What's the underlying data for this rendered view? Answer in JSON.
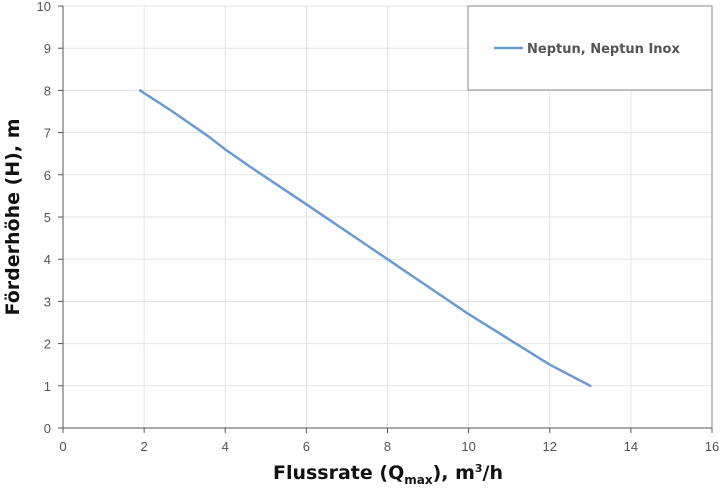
{
  "chart_data": {
    "type": "line",
    "title": "",
    "xlabel_parts": {
      "pre": "Flussrate (Q",
      "sub": "max",
      "mid": "), m",
      "sup": "3",
      "post": "/h"
    },
    "ylabel": "Förderhöhe (H), m",
    "xlim": [
      0,
      16
    ],
    "ylim": [
      0,
      10
    ],
    "xticks": [
      "0",
      "2",
      "4",
      "6",
      "8",
      "10",
      "12",
      "14",
      "16"
    ],
    "yticks": [
      "0",
      "1",
      "2",
      "3",
      "4",
      "5",
      "6",
      "7",
      "8",
      "9",
      "10"
    ],
    "grid": true,
    "legend_position": "top-right",
    "series": [
      {
        "name": "Neptun, Neptun Inox",
        "color": "#6a9ad0",
        "x": [
          1.9,
          2.7,
          3.6,
          4.0,
          4.6,
          6.0,
          8.0,
          10.0,
          11.0,
          12.0,
          13.0
        ],
        "y": [
          8.0,
          7.5,
          6.9,
          6.6,
          6.2,
          5.3,
          4.0,
          2.7,
          2.1,
          1.5,
          1.0
        ]
      }
    ]
  }
}
